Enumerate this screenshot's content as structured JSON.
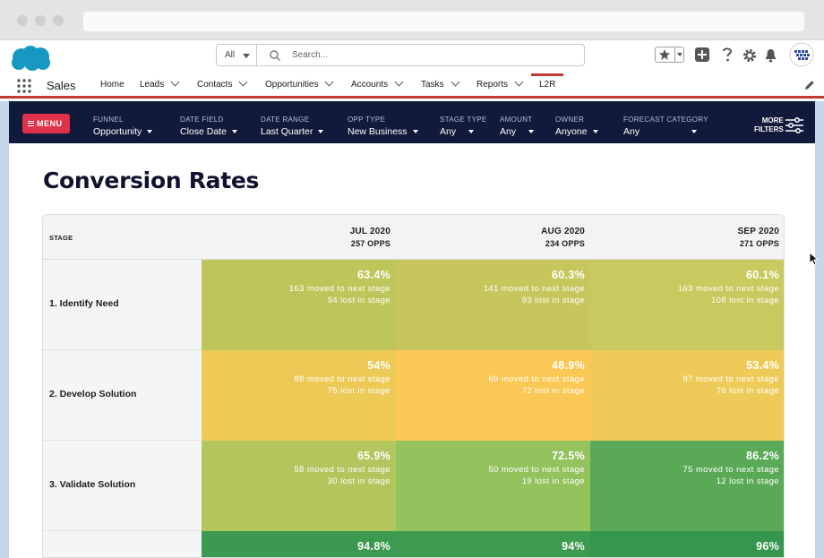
{
  "search": {
    "scope": "All",
    "placeholder": "Search..."
  },
  "app": {
    "name": "Sales"
  },
  "nav": {
    "items": [
      {
        "label": "Home",
        "dropdown": false
      },
      {
        "label": "Leads",
        "dropdown": true
      },
      {
        "label": "Contacts",
        "dropdown": true
      },
      {
        "label": "Opportunities",
        "dropdown": true
      },
      {
        "label": "Accounts",
        "dropdown": true
      },
      {
        "label": "Tasks",
        "dropdown": true
      },
      {
        "label": "Reports",
        "dropdown": true
      }
    ],
    "active_tab": "L2R"
  },
  "filters": {
    "menu_label": "MENU",
    "items": [
      {
        "label": "FUNNEL",
        "value": "Opportunity"
      },
      {
        "label": "DATE FIELD",
        "value": "Close Date"
      },
      {
        "label": "DATE RANGE",
        "value": "Last Quarter"
      },
      {
        "label": "OPP TYPE",
        "value": "New Business"
      },
      {
        "label": "STAGE TYPE",
        "value": "Any"
      },
      {
        "label": "AMOUNT",
        "value": "Any"
      },
      {
        "label": "OWNER",
        "value": "Anyone"
      },
      {
        "label": "FORECAST CATEGORY",
        "value": "Any"
      }
    ],
    "more_line1": "MORE",
    "more_line2": "FILTERS"
  },
  "page": {
    "title": "Conversion Rates"
  },
  "table": {
    "stage_header": "STAGE",
    "columns": [
      {
        "month": "JUL 2020",
        "opps": "257 OPPS"
      },
      {
        "month": "AUG 2020",
        "opps": "234 OPPS"
      },
      {
        "month": "SEP 2020",
        "opps": "271 OPPS"
      }
    ],
    "rows": [
      {
        "stage": "1. Identify Need",
        "cells": [
          {
            "pct": "63.4%",
            "moved": "163 moved to next stage",
            "lost": "94 lost in stage",
            "color": "#bec55a"
          },
          {
            "pct": "60.3%",
            "moved": "141 moved to next stage",
            "lost": "93 lost in stage",
            "color": "#c6c65c"
          },
          {
            "pct": "60.1%",
            "moved": "163 moved to next stage",
            "lost": "108 lost in stage",
            "color": "#c8c95e"
          }
        ]
      },
      {
        "stage": "2. Develop Solution",
        "cells": [
          {
            "pct": "54%",
            "moved": "88 moved to next stage",
            "lost": "75 lost in stage",
            "color": "#ecca55"
          },
          {
            "pct": "48.9%",
            "moved": "69 moved to next stage",
            "lost": "72 lost in stage",
            "color": "#fbc755"
          },
          {
            "pct": "53.4%",
            "moved": "87 moved to next stage",
            "lost": "76 lost in stage",
            "color": "#eecb58"
          }
        ]
      },
      {
        "stage": "3. Validate Solution",
        "cells": [
          {
            "pct": "65.9%",
            "moved": "58 moved to next stage",
            "lost": "30 lost in stage",
            "color": "#b3c55d"
          },
          {
            "pct": "72.5%",
            "moved": "50 moved to next stage",
            "lost": "19 lost in stage",
            "color": "#94c35e"
          },
          {
            "pct": "86.2%",
            "moved": "75 moved to next stage",
            "lost": "12 lost in stage",
            "color": "#5aa957"
          }
        ]
      },
      {
        "stage": "",
        "cells": [
          {
            "pct": "94.8%",
            "moved": "",
            "lost": "",
            "color": "#3b9a4f"
          },
          {
            "pct": "94%",
            "moved": "",
            "lost": "",
            "color": "#3d9b50"
          },
          {
            "pct": "96%",
            "moved": "",
            "lost": "",
            "color": "#35964d"
          }
        ]
      }
    ]
  },
  "colors": {
    "filter_bar": "#121a3b",
    "menu_button": "#e0314a",
    "active_tab_accent": "#c23934",
    "page_background": "#c5d6ea"
  },
  "icons": [
    "salesforce-cloud-logo",
    "search-icon",
    "favorites-star-icon",
    "add-icon",
    "help-icon",
    "settings-gear-icon",
    "notifications-bell-icon",
    "user-avatar",
    "app-launcher-icon",
    "edit-pencil-icon",
    "hamburger-icon",
    "sliders-icon",
    "mouse-cursor"
  ]
}
